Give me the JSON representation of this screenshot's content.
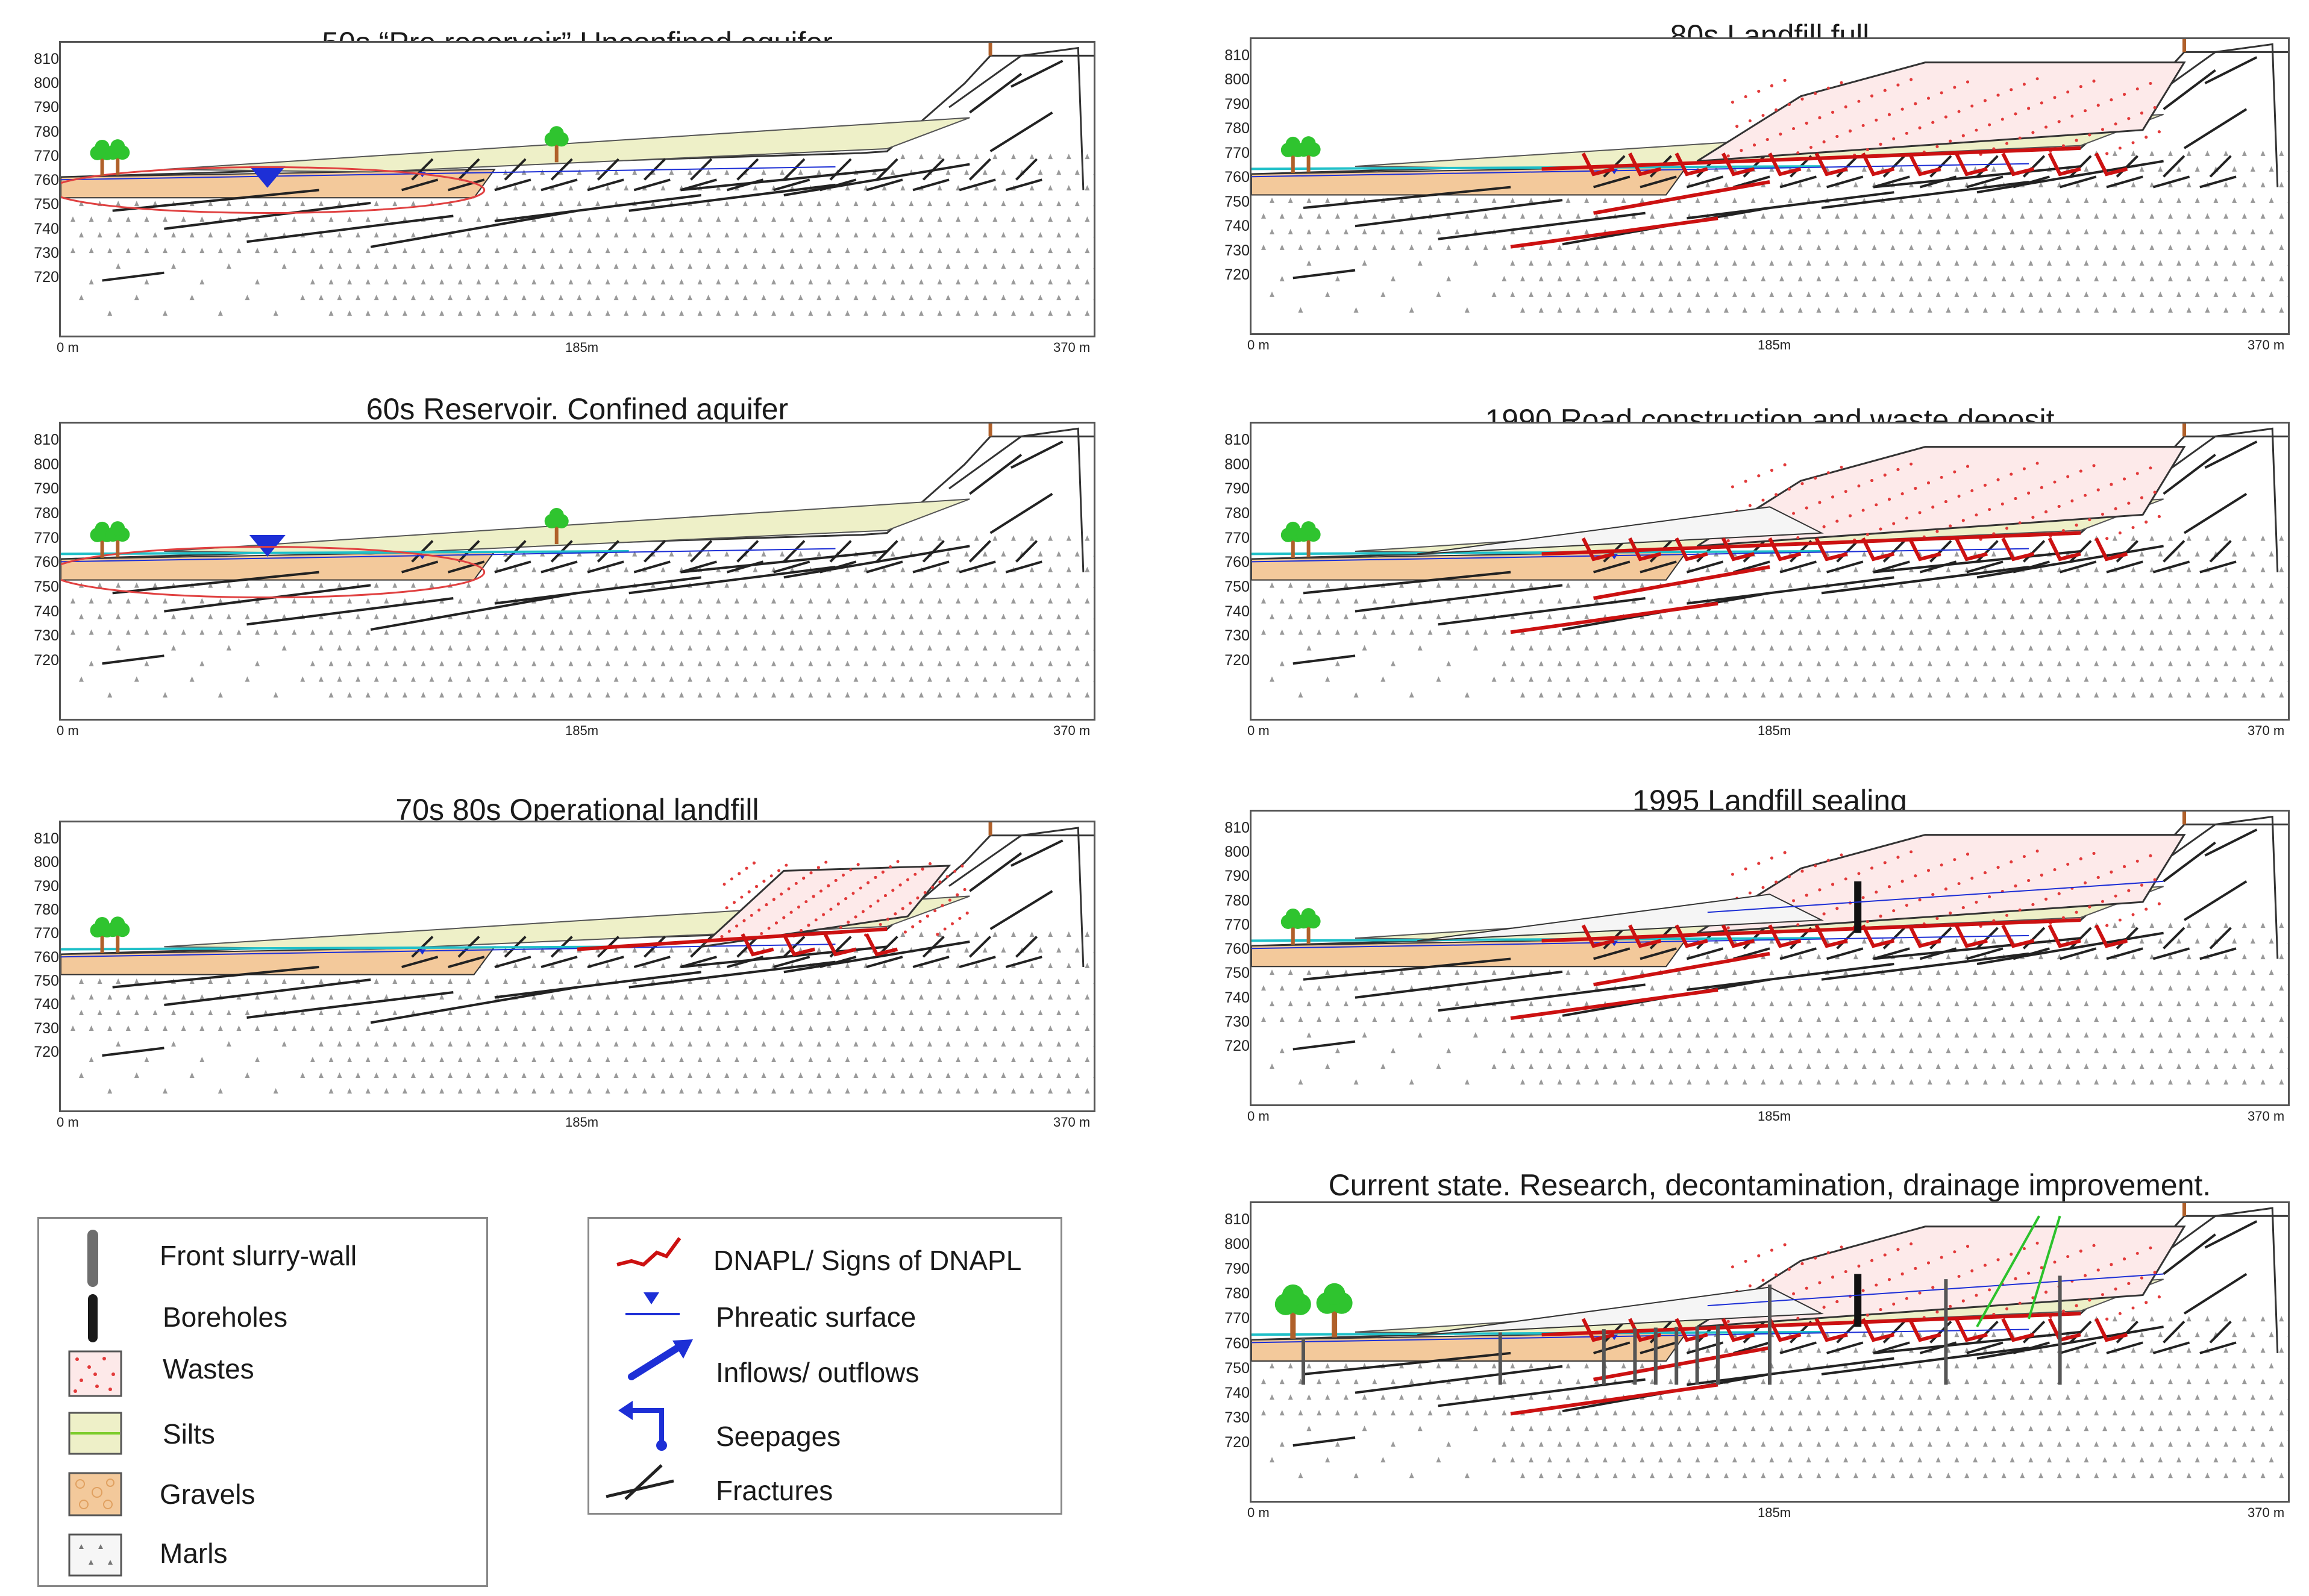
{
  "panels": [
    {
      "id": "p1",
      "title": "50s “Pre reservoir” Unconfined aquifer"
    },
    {
      "id": "p2",
      "title": "60s Reservoir. Confined aquifer"
    },
    {
      "id": "p3",
      "title": "70s 80s Operational landfill"
    },
    {
      "id": "p4",
      "title": "80s Landfill full"
    },
    {
      "id": "p5",
      "title": "1990 Road construction and waste deposit"
    },
    {
      "id": "p6",
      "title": "1995 Landfill sealing"
    },
    {
      "id": "p7",
      "title": "Current state. Research, decontamination, drainage improvement."
    }
  ],
  "axes": {
    "y_ticks": [
      "810",
      "800",
      "790",
      "780",
      "770",
      "760",
      "750",
      "740",
      "730",
      "720"
    ],
    "x_ticks": [
      "0 m",
      "185m",
      "370 m"
    ]
  },
  "legend_left": [
    {
      "symbol": "front-slurry-wall-icon",
      "label": "Front slurry-wall"
    },
    {
      "symbol": "borehole-icon",
      "label": "Boreholes"
    },
    {
      "symbol": "wastes-swatch-icon",
      "label": "Wastes"
    },
    {
      "symbol": "silts-swatch-icon",
      "label": "Silts"
    },
    {
      "symbol": "gravels-swatch-icon",
      "label": "Gravels"
    },
    {
      "symbol": "marls-swatch-icon",
      "label": "Marls"
    }
  ],
  "legend_right": [
    {
      "symbol": "dnapl-icon",
      "label": "DNAPL/ Signs of DNAPL"
    },
    {
      "symbol": "phreatic-surface-icon",
      "label": "Phreatic surface"
    },
    {
      "symbol": "inflow-arrow-icon",
      "label": "Inflows/ outflows"
    },
    {
      "symbol": "seepage-icon",
      "label": "Seepages"
    },
    {
      "symbol": "fracture-icon",
      "label": "Fractures"
    }
  ],
  "colors": {
    "dnapl": "#cc1111",
    "water": "#1d2fd6",
    "gravel": "#f3c99b",
    "silt": "#eef0c8",
    "waste": "#e23a3a",
    "fracture": "#222222",
    "surface_water": "#20c0c8",
    "tree": "#2fc42f",
    "trunk": "#b0602a"
  }
}
